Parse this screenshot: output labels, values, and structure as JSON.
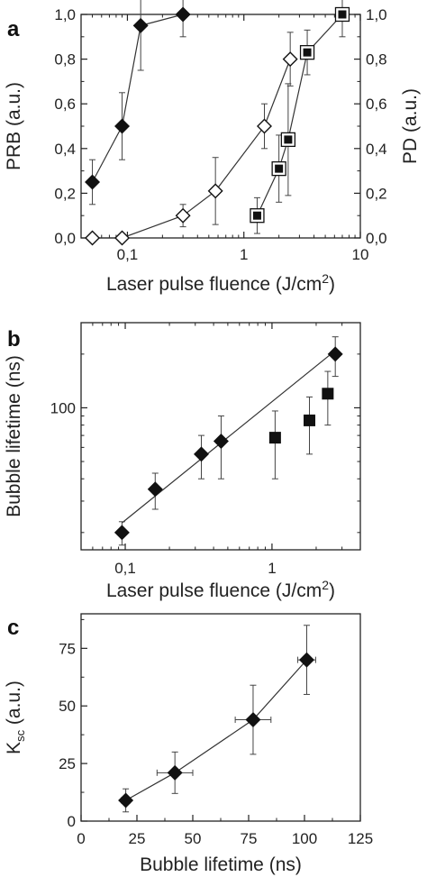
{
  "chart_data": [
    {
      "type": "scatter",
      "panel_label": "a",
      "xlabel": "Laser pulse fluence (J/cm",
      "xlabel_sup": "2",
      "xlabel_end": ")",
      "ylabel": "PRB (a.u.)",
      "ylabel_right": "PD (a.u.)",
      "xscale": "log",
      "xlim": [
        0.04,
        10
      ],
      "ylim": [
        0,
        1
      ],
      "x_ticks": [
        {
          "v": 0.1,
          "label": "0,1"
        },
        {
          "v": 1,
          "label": "1"
        },
        {
          "v": 10,
          "label": "10"
        }
      ],
      "y_ticks": [
        {
          "v": 0,
          "label": "0,0"
        },
        {
          "v": 0.2,
          "label": "0,2"
        },
        {
          "v": 0.4,
          "label": "0,4"
        },
        {
          "v": 0.6,
          "label": "0,6"
        },
        {
          "v": 0.8,
          "label": "0,8"
        },
        {
          "v": 1,
          "label": "1,0"
        }
      ],
      "series": [
        {
          "marker": "diamond-filled",
          "x": [
            0.05,
            0.09,
            0.13,
            0.3
          ],
          "y": [
            0.25,
            0.5,
            0.95,
            1.0
          ],
          "err": [
            0.1,
            0.15,
            0.2,
            0.1
          ]
        },
        {
          "marker": "diamond-open",
          "x": [
            0.05,
            0.09,
            0.3,
            0.57,
            1.5,
            2.5
          ],
          "y": [
            0.0,
            0.0,
            0.1,
            0.21,
            0.5,
            0.8
          ],
          "err": [
            0,
            0,
            0.05,
            0.15,
            0.1,
            0.12
          ]
        },
        {
          "marker": "square-double",
          "x": [
            1.3,
            2.0,
            2.4,
            3.5,
            7.0
          ],
          "y": [
            0.1,
            0.31,
            0.44,
            0.83,
            1.0
          ],
          "err": [
            0.08,
            0.15,
            0.25,
            0.1,
            0.1
          ]
        }
      ]
    },
    {
      "type": "scatter",
      "panel_label": "b",
      "xlabel": "Laser pulse fluence (J/cm",
      "xlabel_sup": "2",
      "xlabel_end": ")",
      "ylabel": "Bubble lifetime (ns)",
      "xscale": "log",
      "yscale": "log",
      "xlim": [
        0.05,
        4
      ],
      "ylim": [
        16,
        300
      ],
      "x_ticks": [
        {
          "v": 0.1,
          "label": "0,1"
        },
        {
          "v": 1,
          "label": "1"
        }
      ],
      "y_ticks": [
        {
          "v": 100,
          "label": "100"
        }
      ],
      "series": [
        {
          "marker": "diamond-filled",
          "fit_line": true,
          "x": [
            0.095,
            0.16,
            0.33,
            0.45,
            2.7
          ],
          "y": [
            20,
            35,
            55,
            65,
            200
          ],
          "err_low": [
            3,
            8,
            15,
            25,
            50
          ],
          "err_high": [
            3,
            8,
            15,
            25,
            50
          ]
        },
        {
          "marker": "square-filled",
          "x": [
            1.05,
            1.8,
            2.4
          ],
          "y": [
            68,
            85,
            120
          ],
          "err_low": [
            28,
            30,
            40
          ],
          "err_high": [
            28,
            30,
            40
          ]
        }
      ]
    },
    {
      "type": "scatter",
      "panel_label": "c",
      "xlabel": "Bubble lifetime (ns)",
      "ylabel": "K",
      "ylabel_sub": "sc",
      "ylabel_end": " (a.u.)",
      "xlim": [
        0,
        125
      ],
      "ylim": [
        0,
        90
      ],
      "x_ticks": [
        {
          "v": 0,
          "label": "0"
        },
        {
          "v": 25,
          "label": "25"
        },
        {
          "v": 50,
          "label": "50"
        },
        {
          "v": 75,
          "label": "75"
        },
        {
          "v": 100,
          "label": "100"
        },
        {
          "v": 125,
          "label": "125"
        }
      ],
      "y_ticks": [
        {
          "v": 0,
          "label": "0"
        },
        {
          "v": 25,
          "label": "25"
        },
        {
          "v": 50,
          "label": "50"
        },
        {
          "v": 75,
          "label": "75"
        }
      ],
      "series": [
        {
          "marker": "diamond-filled",
          "connect": true,
          "x": [
            20,
            42,
            77,
            101
          ],
          "y": [
            9,
            21,
            44,
            70
          ],
          "yerr": [
            5,
            9,
            15,
            15
          ],
          "xerr": [
            2,
            8,
            8,
            4
          ]
        }
      ]
    }
  ]
}
